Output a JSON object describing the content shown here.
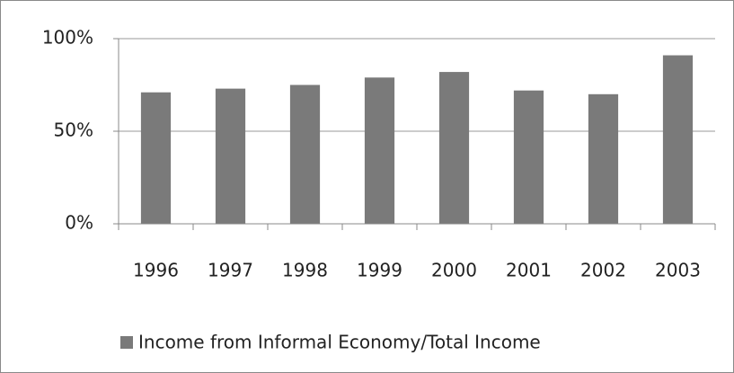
{
  "chart_data": {
    "type": "bar",
    "categories": [
      "1996",
      "1997",
      "1998",
      "1999",
      "2000",
      "2001",
      "2002",
      "2003"
    ],
    "series": [
      {
        "name": "Income from Informal Economy/Total Income",
        "color": "#7a7a7a",
        "values": [
          71,
          73,
          75,
          79,
          82,
          72,
          70,
          91
        ]
      }
    ],
    "ylim": [
      0,
      100
    ],
    "yticks": [
      {
        "value": 0,
        "label": "0%"
      },
      {
        "value": 50,
        "label": "50%"
      },
      {
        "value": 100,
        "label": "100%"
      }
    ],
    "grid": true,
    "legend": "bottom"
  }
}
